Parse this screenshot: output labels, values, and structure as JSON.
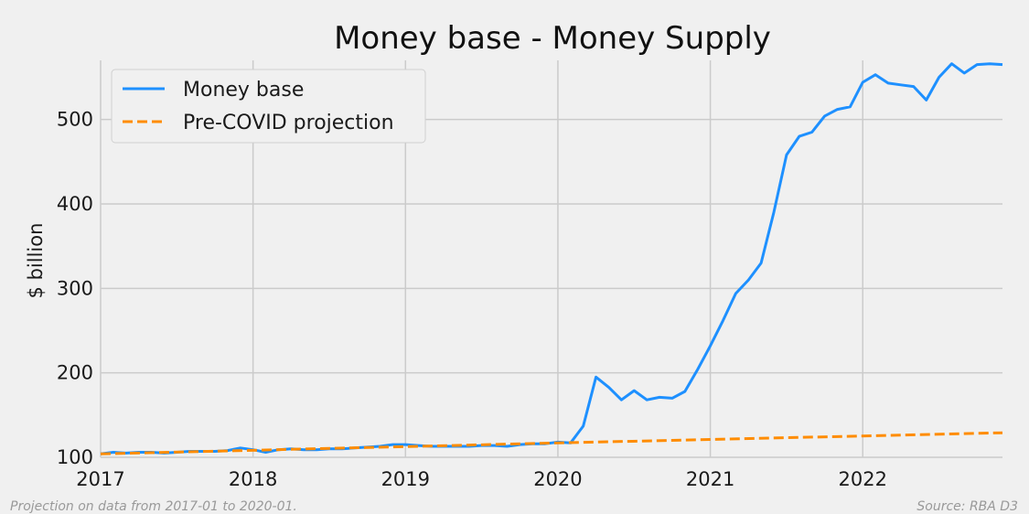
{
  "chart_data": {
    "type": "line",
    "title": "Money base - Money Supply",
    "xlabel": "",
    "ylabel": "$ billion",
    "xlim": [
      "2017-01",
      "2022-12"
    ],
    "ylim": [
      100,
      570
    ],
    "x_ticks": [
      "2017",
      "2018",
      "2019",
      "2020",
      "2021",
      "2022"
    ],
    "y_ticks": [
      100,
      200,
      300,
      400,
      500
    ],
    "grid": true,
    "legend_position": "top-left",
    "series": [
      {
        "name": "Money base",
        "color": "#1e90ff",
        "style": "solid",
        "points": [
          [
            "2017-01",
            104
          ],
          [
            "2017-02",
            106
          ],
          [
            "2017-03",
            105
          ],
          [
            "2017-04",
            106
          ],
          [
            "2017-05",
            106
          ],
          [
            "2017-06",
            105
          ],
          [
            "2017-07",
            106
          ],
          [
            "2017-08",
            107
          ],
          [
            "2017-09",
            107
          ],
          [
            "2017-10",
            107
          ],
          [
            "2017-11",
            108
          ],
          [
            "2017-12",
            111
          ],
          [
            "2018-01",
            109
          ],
          [
            "2018-02",
            106
          ],
          [
            "2018-03",
            109
          ],
          [
            "2018-04",
            110
          ],
          [
            "2018-05",
            109
          ],
          [
            "2018-06",
            109
          ],
          [
            "2018-07",
            110
          ],
          [
            "2018-08",
            110
          ],
          [
            "2018-09",
            111
          ],
          [
            "2018-10",
            112
          ],
          [
            "2018-11",
            113
          ],
          [
            "2018-12",
            115
          ],
          [
            "2019-01",
            115
          ],
          [
            "2019-02",
            114
          ],
          [
            "2019-03",
            113
          ],
          [
            "2019-04",
            113
          ],
          [
            "2019-05",
            113
          ],
          [
            "2019-06",
            113
          ],
          [
            "2019-07",
            114
          ],
          [
            "2019-08",
            114
          ],
          [
            "2019-09",
            113
          ],
          [
            "2019-10",
            115
          ],
          [
            "2019-11",
            116
          ],
          [
            "2019-12",
            116
          ],
          [
            "2020-01",
            118
          ],
          [
            "2020-02",
            117
          ],
          [
            "2020-03",
            137
          ],
          [
            "2020-04",
            195
          ],
          [
            "2020-05",
            183
          ],
          [
            "2020-06",
            168
          ],
          [
            "2020-07",
            179
          ],
          [
            "2020-08",
            168
          ],
          [
            "2020-09",
            171
          ],
          [
            "2020-10",
            170
          ],
          [
            "2020-11",
            178
          ],
          [
            "2020-12",
            204
          ],
          [
            "2021-01",
            232
          ],
          [
            "2021-02",
            262
          ],
          [
            "2021-03",
            294
          ],
          [
            "2021-04",
            310
          ],
          [
            "2021-05",
            330
          ],
          [
            "2021-06",
            390
          ],
          [
            "2021-07",
            458
          ],
          [
            "2021-08",
            480
          ],
          [
            "2021-09",
            485
          ],
          [
            "2021-10",
            504
          ],
          [
            "2021-11",
            512
          ],
          [
            "2021-12",
            515
          ],
          [
            "2022-01",
            544
          ],
          [
            "2022-02",
            553
          ],
          [
            "2022-03",
            543
          ],
          [
            "2022-04",
            541
          ],
          [
            "2022-05",
            539
          ],
          [
            "2022-06",
            523
          ],
          [
            "2022-07",
            550
          ],
          [
            "2022-08",
            566
          ],
          [
            "2022-09",
            555
          ],
          [
            "2022-10",
            565
          ],
          [
            "2022-11",
            566
          ],
          [
            "2022-12",
            565
          ]
        ]
      },
      {
        "name": "Pre-COVID projection",
        "color": "#ff8c00",
        "style": "dashed",
        "points": [
          [
            "2017-01",
            104
          ],
          [
            "2020-01",
            117
          ],
          [
            "2022-12",
            129
          ]
        ]
      }
    ],
    "annotations": {
      "left_note": "Projection on data from 2017-01 to 2020-01.",
      "right_note": "Source: RBA D3"
    }
  }
}
